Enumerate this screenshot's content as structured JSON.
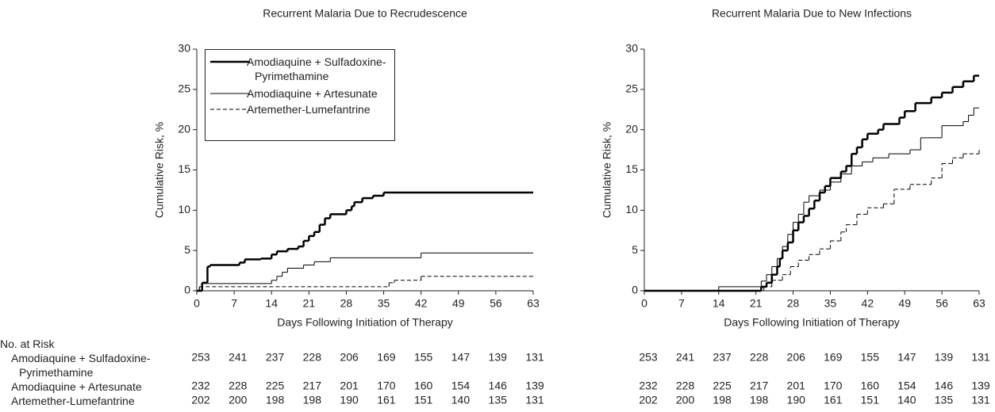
{
  "chart_data": [
    {
      "type": "step",
      "title": "Recurrent Malaria Due to Recrudescence",
      "xlabel": "Days Following Initiation of Therapy",
      "ylabel": "Cumulative Risk, %",
      "xlim": [
        0,
        63
      ],
      "xticks": [
        0,
        7,
        14,
        21,
        28,
        35,
        42,
        49,
        56,
        63
      ],
      "ylim": [
        0,
        30
      ],
      "yticks": [
        0,
        5,
        10,
        15,
        20,
        25,
        30
      ],
      "legend": "upper left",
      "series": [
        {
          "name": "Amodiaquine + Sulfadoxine-Pyrimethamine",
          "color": "#000000",
          "line_width": 2.5,
          "line_style": "solid",
          "x": [
            0,
            1,
            2,
            2.5,
            8,
            9,
            12,
            14,
            15,
            17,
            19,
            20,
            21,
            22,
            23,
            24,
            25,
            28,
            29,
            29.5,
            31,
            33,
            35,
            63
          ],
          "values": [
            0,
            1,
            3,
            3.2,
            3.5,
            3.9,
            4,
            4.5,
            4.9,
            5.2,
            5.5,
            6.2,
            6.8,
            7.3,
            8.2,
            9,
            9.5,
            10,
            10.5,
            11,
            11.5,
            11.8,
            12.2,
            12.2
          ],
          "at_risk": [
            253,
            241,
            237,
            228,
            206,
            169,
            155,
            147,
            139,
            131
          ]
        },
        {
          "name": "Amodiaquine + Artesunate",
          "color": "#000000",
          "line_width": 1,
          "line_style": "solid",
          "x": [
            0,
            0.5,
            1,
            14,
            15,
            16,
            17,
            20,
            22,
            25,
            42,
            63
          ],
          "values": [
            0,
            0.5,
            0.9,
            1.3,
            1.8,
            2.3,
            2.8,
            3.2,
            3.6,
            4.1,
            4.7,
            4.7
          ],
          "at_risk": [
            232,
            228,
            225,
            217,
            201,
            170,
            160,
            154,
            146,
            139
          ]
        },
        {
          "name": "Artemether-Lumefantrine",
          "color": "#000000",
          "line_width": 1,
          "line_style": "dashed",
          "x": [
            0,
            0.5,
            36,
            37,
            42,
            63
          ],
          "values": [
            0,
            0.5,
            1,
            1.3,
            1.8,
            1.8
          ],
          "at_risk": [
            202,
            200,
            198,
            198,
            190,
            161,
            151,
            140,
            135,
            131
          ]
        }
      ]
    },
    {
      "type": "step",
      "title": "Recurrent Malaria Due to New Infections",
      "xlabel": "Days Following Initiation of Therapy",
      "ylabel": "Cumulative Risk, %",
      "xlim": [
        0,
        63
      ],
      "xticks": [
        0,
        7,
        14,
        21,
        28,
        35,
        42,
        49,
        56,
        63
      ],
      "ylim": [
        0,
        30
      ],
      "yticks": [
        0,
        5,
        10,
        15,
        20,
        25,
        30
      ],
      "series": [
        {
          "name": "Amodiaquine + Sulfadoxine-Pyrimethamine",
          "color": "#000000",
          "line_width": 2.5,
          "line_style": "solid",
          "x": [
            0,
            22,
            23,
            24,
            25,
            25.5,
            26,
            27,
            28,
            29,
            30,
            31,
            32,
            33,
            34,
            35,
            37,
            38,
            39,
            40,
            41,
            42,
            44,
            45,
            48,
            49,
            51,
            54,
            56,
            58,
            60,
            62,
            63
          ],
          "values": [
            0,
            0.5,
            1,
            2,
            3,
            4,
            5,
            6,
            7.5,
            8.5,
            9.3,
            10.2,
            11.2,
            12.2,
            13,
            14,
            14.8,
            15.5,
            17,
            17.8,
            18.8,
            19.5,
            20,
            20.7,
            21.5,
            22.3,
            23.3,
            24,
            24.6,
            25.3,
            26,
            26.7,
            26.7
          ],
          "at_risk": [
            253,
            241,
            237,
            228,
            206,
            169,
            155,
            147,
            139,
            131
          ]
        },
        {
          "name": "Amodiaquine + Artesunate",
          "color": "#000000",
          "line_width": 1,
          "line_style": "solid",
          "x": [
            0,
            14,
            22,
            23,
            24,
            25,
            26,
            27,
            28,
            29,
            30,
            31,
            33,
            35,
            37,
            39,
            41,
            43,
            46,
            50,
            52,
            56,
            60,
            61,
            62,
            63
          ],
          "values": [
            0,
            0.5,
            1.2,
            2,
            3,
            4,
            5.5,
            7,
            8.5,
            9.5,
            11,
            11.8,
            12.5,
            13.5,
            14.5,
            15.5,
            16,
            16.5,
            17,
            17.5,
            19,
            20.5,
            21,
            21.8,
            22.7,
            22.7
          ],
          "at_risk": [
            232,
            228,
            225,
            217,
            201,
            170,
            160,
            154,
            146,
            139
          ]
        },
        {
          "name": "Artemether-Lumefantrine",
          "color": "#000000",
          "line_width": 1,
          "line_style": "dashed",
          "x": [
            0,
            22.5,
            24,
            26,
            27.5,
            29,
            31,
            33,
            35,
            37,
            38,
            40,
            42,
            45,
            47,
            50,
            54,
            56,
            58,
            60,
            63
          ],
          "values": [
            0,
            0.5,
            1.3,
            2,
            3,
            3.8,
            4.5,
            5.2,
            6.2,
            7.3,
            8.2,
            9.5,
            10.3,
            10.8,
            12.6,
            13.2,
            14,
            15.8,
            16.5,
            17,
            17.8
          ],
          "at_risk": [
            202,
            200,
            198,
            198,
            190,
            161,
            151,
            140,
            135,
            131
          ]
        }
      ]
    }
  ],
  "risk_table": {
    "title": "No. at Risk"
  }
}
